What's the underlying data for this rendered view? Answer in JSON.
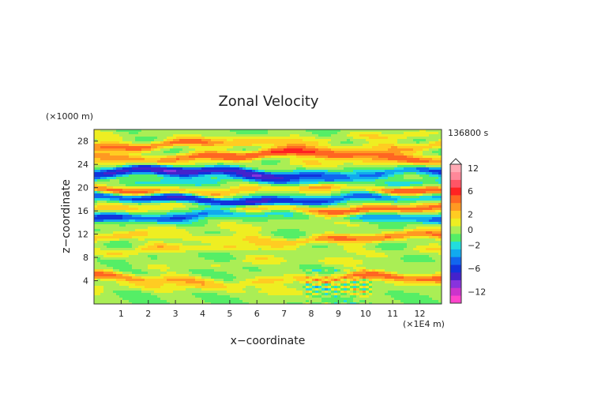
{
  "chart_data": {
    "type": "heatmap",
    "title": "Zonal Velocity",
    "xlabel": "x−coordinate",
    "ylabel": "z−coordinate",
    "x_unit_label": "(×1E4 m)",
    "y_unit_label": "(×1000 m)",
    "time_label": "136800 s",
    "xlim": [
      0,
      12.8
    ],
    "ylim": [
      0,
      30
    ],
    "x_ticks": [
      1,
      2,
      3,
      4,
      5,
      6,
      7,
      8,
      9,
      10,
      11,
      12
    ],
    "y_ticks": [
      4,
      8,
      12,
      16,
      20,
      24,
      28
    ],
    "colorbar": {
      "levels": [
        -14,
        -12,
        -10,
        -8,
        -6,
        -4,
        -3,
        -2,
        -1,
        0,
        1,
        2,
        3,
        4,
        6,
        8,
        10,
        12,
        14
      ],
      "colors": [
        "#ff44cc",
        "#cc33cc",
        "#8833dd",
        "#4422cc",
        "#1133dd",
        "#1166ee",
        "#11aaee",
        "#22dddd",
        "#55ee66",
        "#aaee55",
        "#eeee22",
        "#ffcc22",
        "#ff9922",
        "#ff6622",
        "#ff2222",
        "#ff5566",
        "#ff8899",
        "#ffaab4"
      ],
      "tick_labels": [
        "12",
        "6",
        "2",
        "0",
        "−2",
        "−6",
        "−12"
      ],
      "tick_values": [
        12,
        6,
        2,
        0,
        -2,
        -6,
        -12
      ],
      "extend": "max"
    },
    "bands": [
      {
        "z": 2.5,
        "amp": 1.5
      },
      {
        "z": 4.2,
        "amp": 4.5
      },
      {
        "z": 7.0,
        "amp": 1.2
      },
      {
        "z": 9.3,
        "amp": 2.0
      },
      {
        "z": 11.3,
        "amp": 3.8
      },
      {
        "z": 13.5,
        "amp": 1.0
      },
      {
        "z": 15.2,
        "amp": -4.0
      },
      {
        "z": 16.5,
        "amp": 4.5
      },
      {
        "z": 18.0,
        "amp": -6.5
      },
      {
        "z": 19.6,
        "amp": 5.5
      },
      {
        "z": 21.0,
        "amp": -2.5
      },
      {
        "z": 22.5,
        "amp": -7.0
      },
      {
        "z": 24.0,
        "amp": 2.0
      },
      {
        "z": 25.5,
        "amp": 5.5
      },
      {
        "z": 27.3,
        "amp": 4.0
      },
      {
        "z": 28.7,
        "amp": 1.5
      }
    ]
  }
}
